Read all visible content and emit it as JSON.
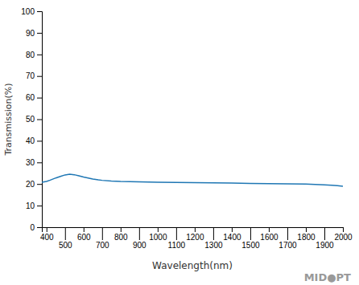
{
  "chart_data": {
    "type": "line",
    "x_label": "Wavelength(nm)",
    "y_label": "Transmission(%)",
    "annotations": [
      "MID●PT"
    ],
    "x": [
      375,
      400,
      420,
      450,
      475,
      500,
      525,
      550,
      575,
      600,
      625,
      650,
      680,
      700,
      750,
      800,
      900,
      1000,
      1100,
      1200,
      1300,
      1400,
      1500,
      1600,
      1700,
      1800,
      1850,
      1900,
      1940,
      1970,
      2000
    ],
    "values": [
      20.8,
      21.2,
      21.8,
      22.8,
      23.5,
      24.2,
      24.5,
      24.3,
      23.8,
      23.2,
      22.8,
      22.3,
      21.9,
      21.7,
      21.4,
      21.2,
      21.0,
      20.8,
      20.7,
      20.6,
      20.5,
      20.4,
      20.3,
      20.2,
      20.1,
      20.0,
      19.8,
      19.6,
      19.4,
      19.2,
      19.0
    ],
    "xlim": [
      375,
      2000
    ],
    "ylim": [
      0,
      100
    ],
    "xticks": [
      400,
      500,
      600,
      700,
      800,
      900,
      1000,
      1100,
      1200,
      1300,
      1400,
      1500,
      1600,
      1700,
      1800,
      1900,
      2000
    ],
    "yticks": [
      0,
      10,
      20,
      30,
      40,
      50,
      60,
      70,
      80,
      90,
      100
    ],
    "grid": false
  }
}
